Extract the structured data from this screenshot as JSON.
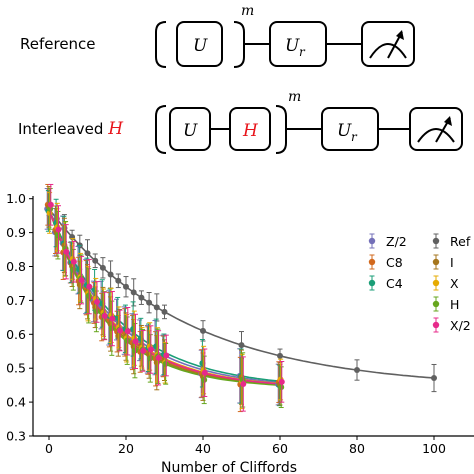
{
  "circuits": {
    "reference": {
      "label": "Reference",
      "gate_u": "U",
      "gate_ur": "U",
      "ur_sub": "r",
      "exponent": "m"
    },
    "interleaved": {
      "label_prefix": "Interleaved ",
      "label_gate": "H",
      "gate_u": "U",
      "gate_h": "H",
      "gate_ur": "U",
      "ur_sub": "r",
      "exponent": "m",
      "highlight_color": "#e8141b"
    }
  },
  "chart_data": {
    "type": "scatter",
    "xlabel": "Number of Cliffords",
    "ylabel": "",
    "xticks": [
      0,
      20,
      40,
      60,
      80,
      100
    ],
    "yticks": [
      "0.3",
      "0.4",
      "0.5",
      "0.6",
      "0.7",
      "0.8",
      "0.9",
      "1.0"
    ],
    "xlim": [
      -4,
      118
    ],
    "ylim": [
      0.3,
      1.01
    ],
    "legend_position": "top-right",
    "series": [
      {
        "name": "Ref",
        "color": "#606060",
        "marker": "circle",
        "r": 0.972,
        "x": [
          0,
          2,
          4,
          6,
          8,
          10,
          12,
          14,
          16,
          18,
          20,
          22,
          24,
          26,
          28,
          30,
          40,
          50,
          60,
          80,
          100
        ]
      },
      {
        "name": "Z/2",
        "color": "#7470b8",
        "marker": "circle",
        "r": 0.945,
        "x": [
          0,
          2,
          4,
          6,
          8,
          10,
          12,
          14,
          16,
          18,
          20,
          22,
          24,
          26,
          28,
          30,
          40,
          50,
          60
        ]
      },
      {
        "name": "C8",
        "color": "#d2691e",
        "marker": "circle",
        "r": 0.94,
        "x": [
          0,
          2,
          4,
          6,
          8,
          10,
          12,
          14,
          16,
          18,
          20,
          22,
          24,
          26,
          28,
          30,
          40,
          50,
          60
        ]
      },
      {
        "name": "C4",
        "color": "#1a9e77",
        "marker": "circle",
        "r": 0.948,
        "x": [
          0,
          2,
          4,
          6,
          8,
          10,
          12,
          14,
          16,
          18,
          20,
          22,
          24,
          26,
          28,
          30,
          40,
          50,
          60
        ]
      },
      {
        "name": "I",
        "color": "#a6761d",
        "marker": "circle",
        "r": 0.938,
        "x": [
          0,
          2,
          4,
          6,
          8,
          10,
          12,
          14,
          16,
          18,
          20,
          22,
          24,
          26,
          28,
          30,
          40,
          50,
          60
        ]
      },
      {
        "name": "X",
        "color": "#e6ab02",
        "marker": "circle",
        "r": 0.942,
        "x": [
          0,
          2,
          4,
          6,
          8,
          10,
          12,
          14,
          16,
          18,
          20,
          22,
          24,
          26,
          28,
          30,
          40,
          50,
          60
        ]
      },
      {
        "name": "H",
        "color": "#66a61e",
        "marker": "circle",
        "r": 0.936,
        "x": [
          0,
          2,
          4,
          6,
          8,
          10,
          12,
          14,
          16,
          18,
          20,
          22,
          24,
          26,
          28,
          30,
          40,
          50,
          60
        ]
      },
      {
        "name": "X/2",
        "color": "#e7298a",
        "marker": "circle",
        "r": 0.941,
        "x": [
          0,
          2,
          4,
          6,
          8,
          10,
          12,
          14,
          16,
          18,
          20,
          22,
          24,
          26,
          28,
          30,
          40,
          50,
          60
        ]
      }
    ],
    "fit": {
      "A": 0.53,
      "B": 0.44
    },
    "error_bar": {
      "Ref": 0.02,
      "default": 0.06
    }
  }
}
